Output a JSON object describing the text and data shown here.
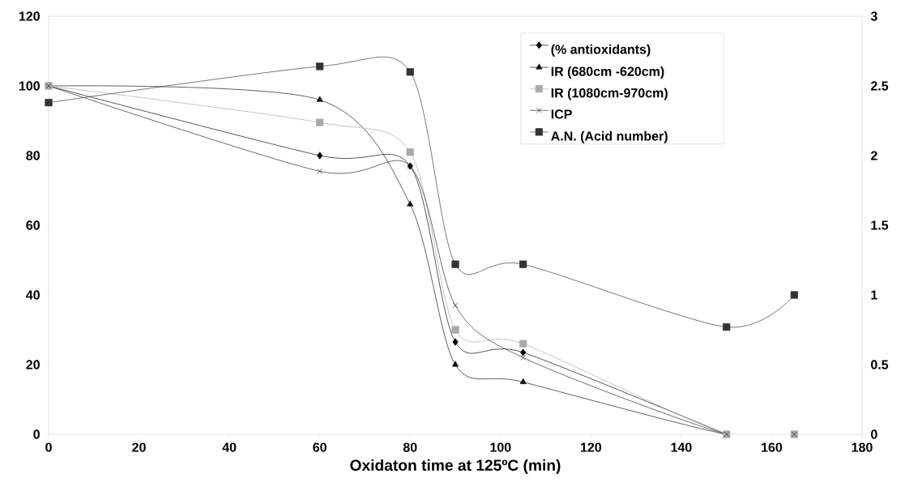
{
  "chart_data": {
    "type": "line",
    "xlabel": "Oxidaton time at 125ºC (min)",
    "xlim": [
      0,
      180
    ],
    "xticks": [
      0,
      20,
      40,
      60,
      80,
      100,
      120,
      140,
      160,
      180
    ],
    "ylim": [
      0,
      120
    ],
    "yticks": [
      0,
      20,
      40,
      60,
      80,
      100,
      120
    ],
    "y2lim": [
      0,
      3
    ],
    "y2ticks": [
      0,
      0.5,
      1,
      1.5,
      2,
      2.5,
      3
    ],
    "legend": "top right",
    "grid": false,
    "series": [
      {
        "name": "(% antioxidants)",
        "color": "#000000",
        "marker": "diamond",
        "x": [
          0,
          60,
          80,
          90,
          105,
          150
        ],
        "values": [
          100,
          80,
          77,
          26.5,
          23.5,
          0
        ]
      },
      {
        "name": " IR (680cm -620cm)",
        "color": "#111111",
        "marker": "triangle",
        "x": [
          0,
          60,
          80,
          90,
          105,
          150,
          165
        ],
        "values": [
          100,
          96,
          66,
          20,
          15,
          0,
          0
        ]
      },
      {
        "name": "IR (1080cm-970cm)",
        "color": "#aaaaaa",
        "marker": "square",
        "x": [
          0,
          60,
          80,
          90,
          105,
          150,
          165
        ],
        "values": [
          100,
          89.5,
          81,
          30,
          26,
          0,
          0
        ]
      },
      {
        "name": "ICP",
        "color": "#222222",
        "marker": "cross",
        "x": [
          0,
          60,
          80,
          90,
          105,
          150,
          165
        ],
        "values": [
          100,
          75.5,
          77,
          37,
          22,
          0,
          0
        ]
      },
      {
        "name": "A.N. (Acid number)",
        "color": "#333333",
        "marker": "square",
        "axis": "y2",
        "x": [
          0,
          60,
          80,
          90,
          105,
          150,
          165
        ],
        "values": [
          2.38,
          2.64,
          2.6,
          1.22,
          1.22,
          0.77,
          1.0
        ]
      }
    ]
  }
}
